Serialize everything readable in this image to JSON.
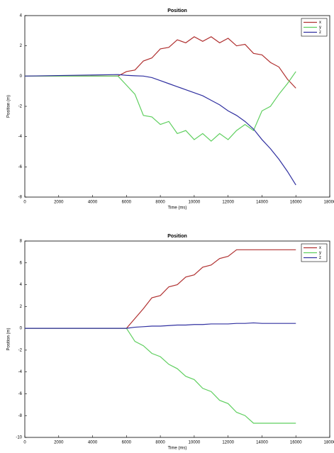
{
  "chart_data": [
    {
      "type": "line",
      "title": "Position",
      "xlabel": "Time (ms)",
      "ylabel": "Position (m)",
      "x": [
        0,
        5500,
        6000,
        6500,
        7000,
        7500,
        8000,
        8500,
        9000,
        9500,
        10000,
        10500,
        11000,
        11500,
        12000,
        12500,
        13000,
        13500,
        14000,
        14500,
        15000,
        15500,
        16000
      ],
      "series": [
        {
          "name": "x",
          "color": "#b03030",
          "values": [
            0,
            0,
            0.3,
            0.4,
            1.0,
            1.2,
            1.8,
            1.9,
            2.4,
            2.2,
            2.6,
            2.3,
            2.6,
            2.2,
            2.5,
            2.0,
            2.1,
            1.5,
            1.4,
            0.9,
            0.6,
            -0.2,
            -0.8
          ]
        },
        {
          "name": "y",
          "color": "#5fcf5f",
          "values": [
            0,
            0,
            -0.6,
            -1.2,
            -2.6,
            -2.7,
            -3.2,
            -3.0,
            -3.8,
            -3.6,
            -4.2,
            -3.8,
            -4.3,
            -3.8,
            -4.2,
            -3.6,
            -3.2,
            -3.6,
            -2.3,
            -2.0,
            -1.2,
            -0.5,
            0.3
          ]
        },
        {
          "name": "z",
          "color": "#3030a0",
          "values": [
            0,
            0.1,
            0.05,
            0.02,
            0,
            -0.1,
            -0.3,
            -0.5,
            -0.7,
            -0.9,
            -1.1,
            -1.3,
            -1.6,
            -1.9,
            -2.3,
            -2.6,
            -3.0,
            -3.5,
            -4.2,
            -4.8,
            -5.5,
            -6.3,
            -7.2
          ]
        }
      ],
      "xlim": [
        0,
        18000
      ],
      "xticks": [
        0,
        2000,
        4000,
        6000,
        8000,
        10000,
        12000,
        14000,
        16000,
        18000
      ],
      "ylim": [
        -8,
        4
      ],
      "yticks": [
        -8,
        -6,
        -4,
        -2,
        0,
        2,
        4
      ],
      "legend": "upper right"
    },
    {
      "type": "line",
      "title": "Position",
      "xlabel": "Time (ms)",
      "ylabel": "Position (m)",
      "x": [
        0,
        6000,
        6500,
        7000,
        7500,
        8000,
        8500,
        9000,
        9500,
        10000,
        10500,
        11000,
        11500,
        12000,
        12500,
        13000,
        13500,
        14000,
        14500,
        15000,
        15500,
        16000
      ],
      "series": [
        {
          "name": "x",
          "color": "#b03030",
          "values": [
            0,
            0,
            0.9,
            1.8,
            2.8,
            3.0,
            3.8,
            4.0,
            4.7,
            4.9,
            5.6,
            5.8,
            6.4,
            6.6,
            7.2,
            7.2,
            7.2,
            7.2,
            7.2,
            7.2,
            7.2,
            7.2
          ]
        },
        {
          "name": "y",
          "color": "#5fcf5f",
          "values": [
            0,
            0,
            -1.2,
            -1.6,
            -2.3,
            -2.6,
            -3.3,
            -3.7,
            -4.4,
            -4.7,
            -5.5,
            -5.8,
            -6.6,
            -6.9,
            -7.7,
            -8.0,
            -8.7,
            -8.7,
            -8.7,
            -8.7,
            -8.7,
            -8.7
          ]
        },
        {
          "name": "z",
          "color": "#3030a0",
          "values": [
            0,
            0,
            0.1,
            0.15,
            0.2,
            0.2,
            0.25,
            0.3,
            0.3,
            0.35,
            0.35,
            0.4,
            0.4,
            0.4,
            0.45,
            0.45,
            0.5,
            0.45,
            0.45,
            0.45,
            0.45,
            0.45
          ]
        }
      ],
      "xlim": [
        0,
        18000
      ],
      "xticks": [
        0,
        2000,
        4000,
        6000,
        8000,
        10000,
        12000,
        14000,
        16000,
        18000
      ],
      "ylim": [
        -10,
        8
      ],
      "yticks": [
        -10,
        -8,
        -6,
        -4,
        -2,
        0,
        2,
        4,
        6,
        8
      ],
      "legend": "upper right"
    }
  ]
}
